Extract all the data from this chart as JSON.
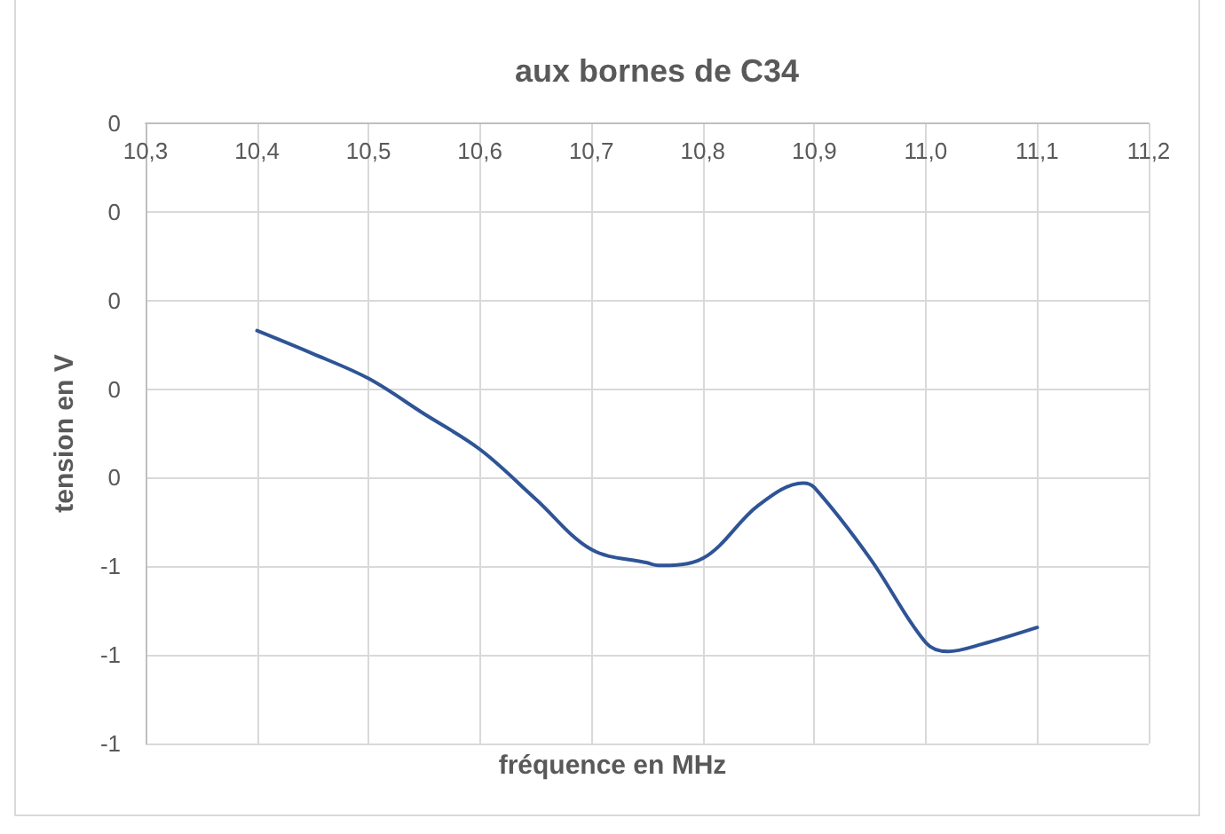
{
  "chart_data": {
    "type": "line",
    "title": "aux bornes de C34",
    "xlabel": "fréquence en MHz",
    "ylabel": "tension en V",
    "x": [
      10.4,
      10.45,
      10.5,
      10.55,
      10.6,
      10.65,
      10.7,
      10.75,
      10.76,
      10.8,
      10.85,
      10.89,
      10.9,
      10.95,
      11.0,
      11.02,
      11.05,
      11.1
    ],
    "series": [
      {
        "color": "#2f5496",
        "values": [
          -0.234,
          -0.26,
          -0.288,
          -0.328,
          -0.368,
          -0.424,
          -0.481,
          -0.496,
          -0.499,
          -0.491,
          -0.431,
          -0.406,
          -0.411,
          -0.491,
          -0.586,
          -0.596,
          -0.588,
          -0.569
        ]
      }
    ],
    "xlim": [
      10.3,
      11.2
    ],
    "xticks": [
      {
        "value": 10.3,
        "label": "10,3"
      },
      {
        "value": 10.4,
        "label": "10,4"
      },
      {
        "value": 10.5,
        "label": "10,5"
      },
      {
        "value": 10.6,
        "label": "10,6"
      },
      {
        "value": 10.7,
        "label": "10,7"
      },
      {
        "value": 10.8,
        "label": "10,8"
      },
      {
        "value": 10.9,
        "label": "10,9"
      },
      {
        "value": 11.0,
        "label": "11,0"
      },
      {
        "value": 11.1,
        "label": "11,1"
      },
      {
        "value": 11.2,
        "label": "11,2"
      }
    ],
    "ylim": [
      -0.7,
      0
    ],
    "yticks": [
      0,
      {
        "value": -0.1,
        "label": "0"
      },
      {
        "value": -0.2,
        "label": "0"
      },
      {
        "value": -0.3,
        "label": "0"
      },
      {
        "value": -0.4,
        "label": "0"
      },
      {
        "value": -0.5,
        "label": "-1"
      },
      {
        "value": -0.6,
        "label": "-1"
      },
      {
        "value": -0.7,
        "label": "-1"
      }
    ],
    "grid": true,
    "marker": "none",
    "line_style": "solid"
  }
}
